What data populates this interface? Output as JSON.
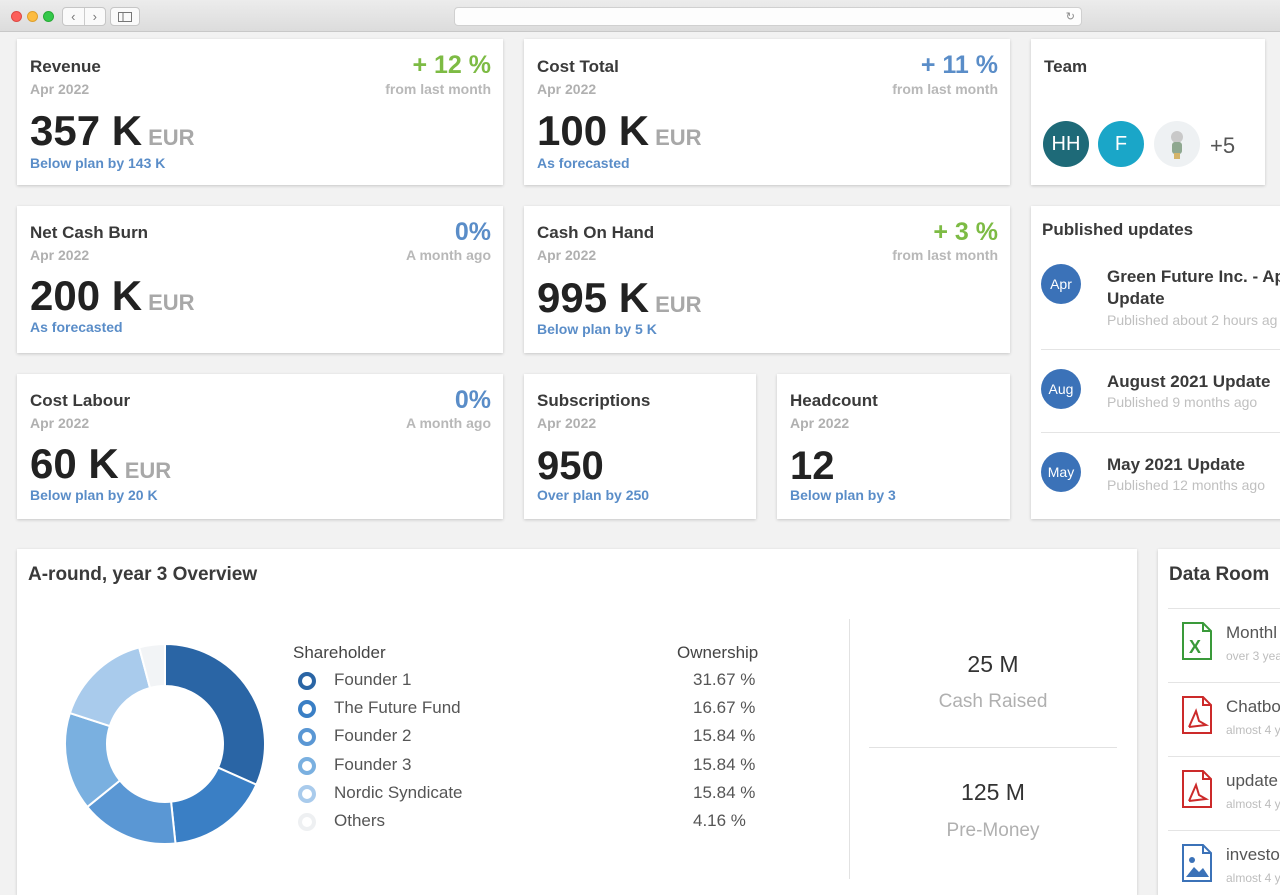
{
  "kpis": {
    "revenue": {
      "title": "Revenue",
      "date": "Apr 2022",
      "change": "+ 12 %",
      "sub": "from last month",
      "value": "357 K",
      "unit": "EUR",
      "note": "Below plan by 143 K"
    },
    "cost_total": {
      "title": "Cost Total",
      "date": "Apr 2022",
      "change": "+ 11 %",
      "sub": "from last month",
      "value": "100 K",
      "unit": "EUR",
      "note": "As forecasted"
    },
    "net_cash_burn": {
      "title": "Net Cash Burn",
      "date": "Apr 2022",
      "change": "0%",
      "sub": "A month ago",
      "value": "200 K",
      "unit": "EUR",
      "note": "As forecasted"
    },
    "cash_on_hand": {
      "title": "Cash On Hand",
      "date": "Apr 2022",
      "change": "+ 3 %",
      "sub": "from last month",
      "value": "995 K",
      "unit": "EUR",
      "note": "Below plan by 5 K"
    },
    "cost_labour": {
      "title": "Cost Labour",
      "date": "Apr 2022",
      "change": "0%",
      "sub": "A month ago",
      "value": "60 K",
      "unit": "EUR",
      "note": "Below plan by 20 K"
    },
    "subscriptions": {
      "title": "Subscriptions",
      "date": "Apr 2022",
      "value": "950",
      "note": "Over plan by 250"
    },
    "headcount": {
      "title": "Headcount",
      "date": "Apr 2022",
      "value": "12",
      "note": "Below plan by 3"
    }
  },
  "team": {
    "title": "Team",
    "members": [
      {
        "initials": "HH",
        "color": "#1e6a78"
      },
      {
        "initials": "F",
        "color": "#1aa6c8"
      }
    ],
    "more": "+5"
  },
  "updates": {
    "title": "Published updates",
    "items": [
      {
        "badge": "Apr",
        "name_line1": "Green Future Inc. - Ap",
        "name_line2": "Update",
        "time": "Published about 2 hours ag"
      },
      {
        "badge": "Aug",
        "name_line1": "August 2021 Update",
        "time": "Published 9 months ago"
      },
      {
        "badge": "May",
        "name_line1": "May 2021 Update",
        "time": "Published 12 months ago"
      }
    ]
  },
  "overview": {
    "title": "A-round, year 3 Overview",
    "col_shareholder": "Shareholder",
    "col_ownership": "Ownership",
    "cash_raised_value": "25 M",
    "cash_raised_label": "Cash Raised",
    "pre_money_value": "125 M",
    "pre_money_label": "Pre-Money"
  },
  "chart_data": {
    "type": "pie",
    "donut": true,
    "categories": [
      "Founder 1",
      "The Future Fund",
      "Founder 2",
      "Founder 3",
      "Nordic Syndicate",
      "Others"
    ],
    "values": [
      31.67,
      16.67,
      15.84,
      15.84,
      15.84,
      4.16
    ],
    "labels": [
      "31.67 %",
      "16.67 %",
      "15.84 %",
      "15.84 %",
      "15.84 %",
      "4.16 %"
    ],
    "colors": [
      "#2a65a5",
      "#3a7fc5",
      "#5a97d4",
      "#7ab0e0",
      "#a9cbec",
      "#f2f4f6"
    ]
  },
  "dataroom": {
    "title": "Data Room",
    "items": [
      {
        "name": "Monthl",
        "date": "over 3 yea",
        "icon": "excel-file-icon"
      },
      {
        "name": "Chatbo",
        "date": "almost 4 y",
        "icon": "pdf-file-icon"
      },
      {
        "name": "update",
        "date": "almost 4 y",
        "icon": "pdf-file-icon"
      },
      {
        "name": "investo",
        "date": "almost 4 y",
        "icon": "image-file-icon"
      }
    ]
  }
}
